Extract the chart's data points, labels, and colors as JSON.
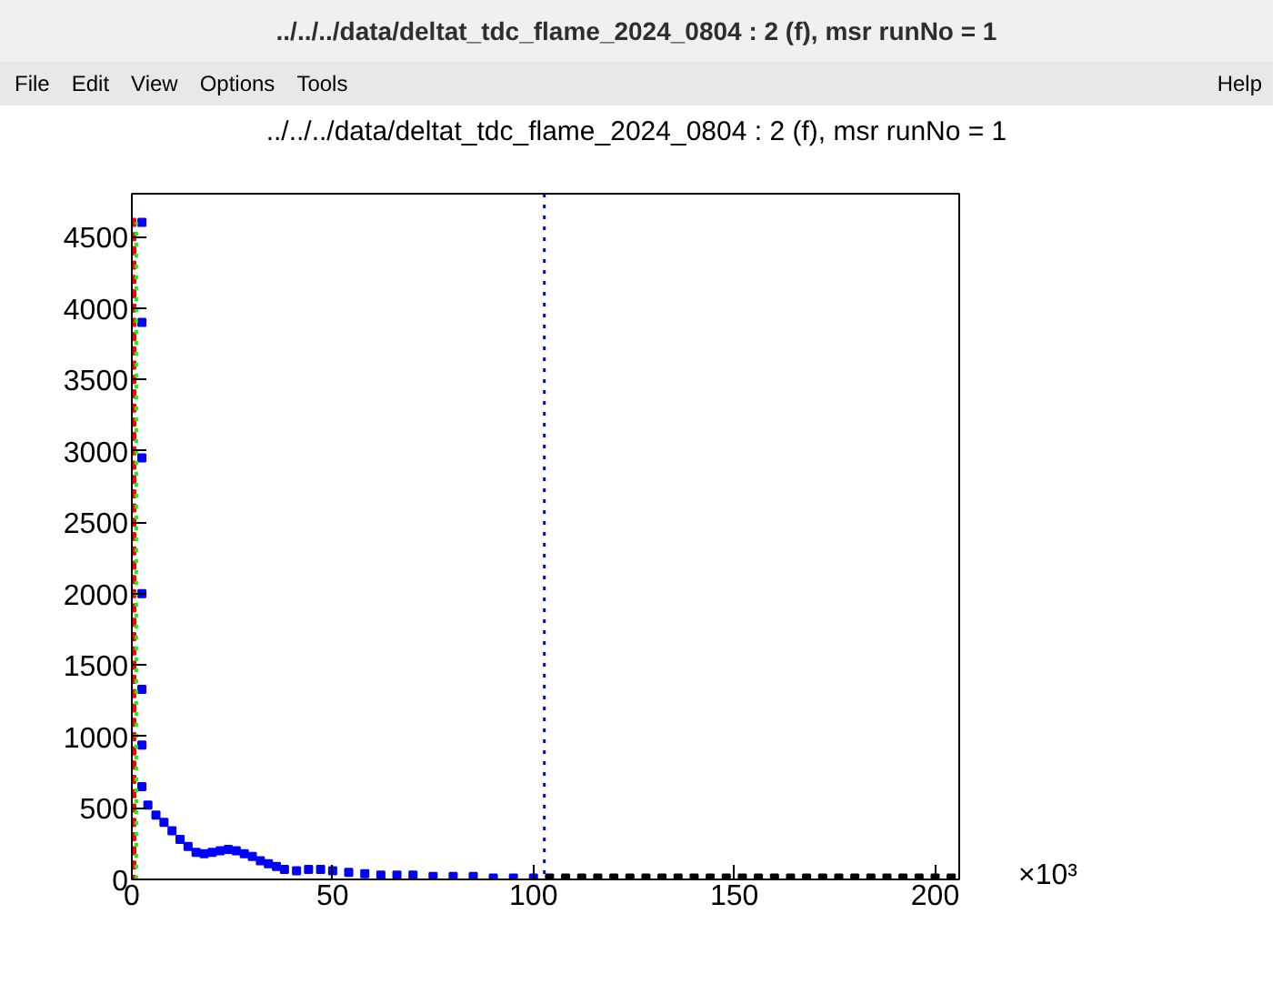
{
  "chart_data": {
    "type": "scatter",
    "title": "../../../data/deltat_tdc_flame_2024_0804 : 2 (f), msr runNo = 1",
    "annotations": [
      "../../../data/deltat_tdc_flame_2024_0804 : 2 (f), msr runNo = 1",
      "File",
      "Edit",
      "View",
      "Options",
      "Tools",
      "Help"
    ],
    "xlabel": "×10³",
    "xlim": [
      0,
      206
    ],
    "xticks": [
      0,
      50,
      100,
      150,
      200
    ],
    "ylim": [
      0,
      4800
    ],
    "yticks": [
      0,
      500,
      1000,
      1500,
      2000,
      2500,
      3000,
      3500,
      4000,
      4500
    ],
    "marker": "square",
    "grid": false,
    "ref_lines": [
      {
        "axis": "x",
        "value": 102.7,
        "color": "#0000ff",
        "line_style": "dotted"
      }
    ],
    "series": [
      {
        "color": "#ff0000",
        "x": [
          0,
          0,
          0,
          0,
          0,
          0,
          0,
          0,
          0,
          0,
          0,
          0,
          0,
          0,
          0,
          0,
          0,
          0,
          0,
          0,
          0,
          0,
          0,
          0,
          0,
          0,
          0,
          0,
          0,
          0,
          0,
          0,
          0,
          0,
          0,
          0,
          0,
          0,
          0,
          0,
          0,
          0,
          0,
          0,
          0,
          0,
          0
        ],
        "values": [
          0,
          100,
          200,
          300,
          400,
          500,
          600,
          700,
          800,
          900,
          1000,
          1100,
          1200,
          1300,
          1400,
          1500,
          1600,
          1700,
          1800,
          1900,
          2000,
          2100,
          2200,
          2300,
          2400,
          2500,
          2600,
          2700,
          2800,
          2900,
          3000,
          3100,
          3200,
          3300,
          3400,
          3500,
          3600,
          3700,
          3800,
          3900,
          4000,
          4100,
          4200,
          4300,
          4400,
          4500,
          4600
        ]
      },
      {
        "color": "#0000ff",
        "x": [
          2.5,
          2.5,
          2.5,
          2.5,
          2.5,
          2.5,
          2.5,
          4,
          6,
          8,
          10,
          12,
          14,
          16,
          18,
          20,
          22,
          24,
          26,
          28,
          30,
          32,
          34,
          36,
          38,
          41,
          44,
          47,
          50,
          54,
          58,
          62,
          66,
          70,
          75,
          80,
          85,
          90,
          95,
          100
        ],
        "values": [
          4600,
          3900,
          2950,
          2000,
          1330,
          940,
          650,
          520,
          450,
          400,
          340,
          280,
          230,
          190,
          180,
          190,
          200,
          210,
          200,
          180,
          160,
          130,
          110,
          90,
          70,
          60,
          70,
          70,
          60,
          50,
          40,
          30,
          30,
          30,
          20,
          20,
          20,
          10,
          10,
          10
        ]
      },
      {
        "color": "#000000",
        "x": [
          104,
          108,
          112,
          116,
          120,
          124,
          128,
          132,
          136,
          140,
          144,
          148,
          152,
          156,
          160,
          164,
          168,
          172,
          176,
          180,
          184,
          188,
          192,
          196,
          200,
          204
        ],
        "values": [
          10,
          10,
          10,
          10,
          10,
          10,
          10,
          10,
          10,
          10,
          10,
          10,
          10,
          10,
          10,
          10,
          10,
          10,
          10,
          10,
          10,
          10,
          10,
          10,
          10,
          10
        ]
      },
      {
        "type": "line",
        "line_style": "dotted",
        "marker": "none",
        "color": "#00ff00",
        "x": [
          1.1,
          1.1
        ],
        "values": [
          0,
          4600
        ]
      }
    ]
  }
}
